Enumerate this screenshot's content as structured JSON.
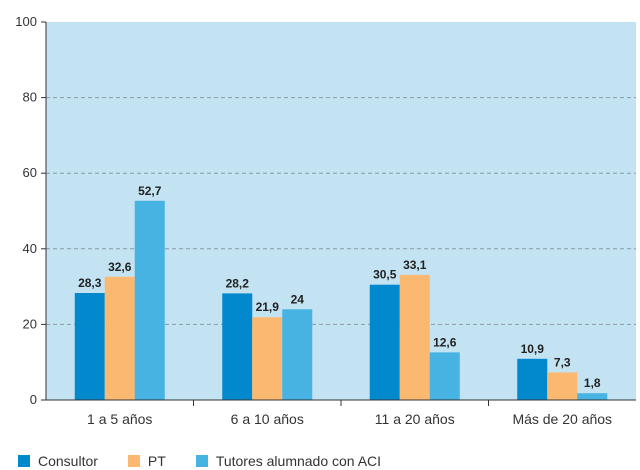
{
  "chart_data": {
    "type": "bar",
    "categories": [
      "1 a 5 años",
      "6 a 10 años",
      "11 a 20 años",
      "Más de 20 años"
    ],
    "series": [
      {
        "name": "Consultor",
        "color": "#0288cc",
        "values": [
          28.3,
          28.2,
          30.5,
          10.9
        ],
        "labels": [
          "28,3",
          "28,2",
          "30,5",
          "10,9"
        ]
      },
      {
        "name": "PT",
        "color": "#fbb871",
        "values": [
          32.6,
          21.9,
          33.1,
          7.3
        ],
        "labels": [
          "32,6",
          "21,9",
          "33,1",
          "7,3"
        ]
      },
      {
        "name": "Tutores alumnado con ACI",
        "color": "#47b3e2",
        "values": [
          52.7,
          24,
          12.6,
          1.8
        ],
        "labels": [
          "52,7",
          "24",
          "12,6",
          "1,8"
        ]
      }
    ],
    "y_ticks": [
      "0",
      "20",
      "40",
      "60",
      "80",
      "100"
    ],
    "ylim": [
      0,
      100
    ],
    "grid": true,
    "legend": "bottom-left",
    "plot_background": "#c3e3f3"
  }
}
